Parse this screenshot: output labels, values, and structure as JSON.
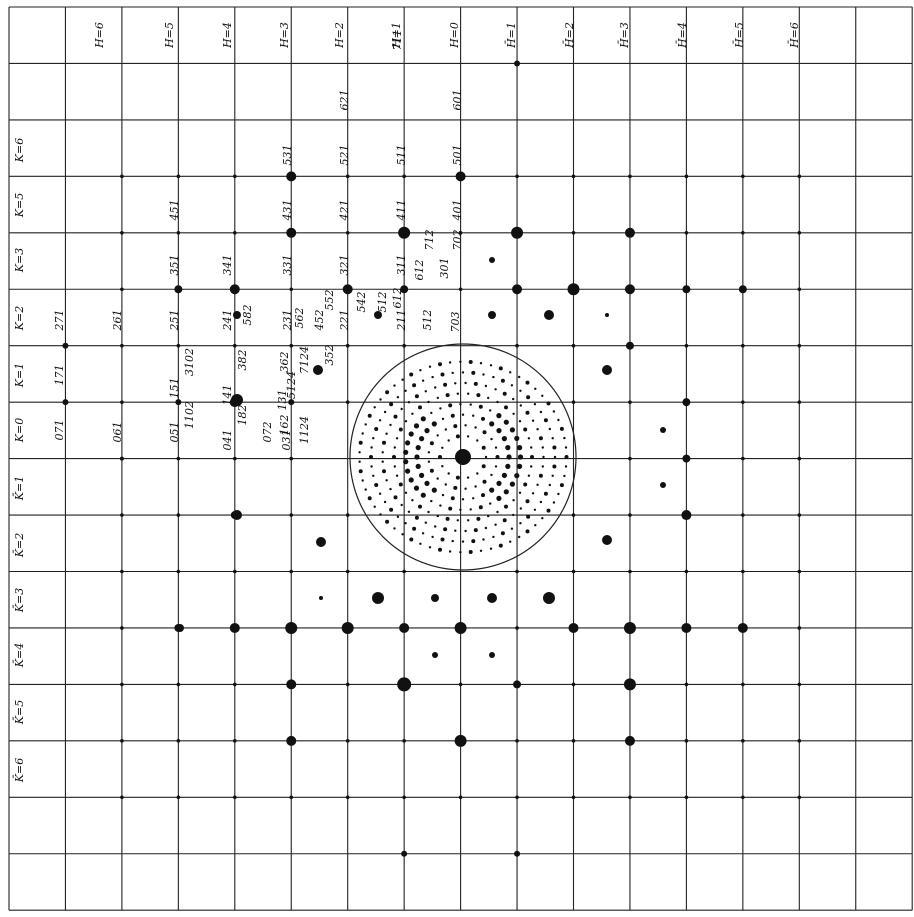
{
  "column_headers": [
    "H=6",
    "H=5",
    "H=4",
    "H=3",
    "H=2",
    "H=1",
    "H=0",
    "H̄=1",
    "H̄=2",
    "H̄=3",
    "H̄=4",
    "H̄=5",
    "H̄=6"
  ],
  "row_headers": [
    "K=6",
    "K=5",
    "K=3",
    "K=2",
    "K=1",
    "K=0",
    "K̄=1",
    "K̄=2",
    "K̄=3",
    "K̄=4",
    "K̄=5",
    "K̄=6"
  ],
  "index_labels": [
    "711",
    "621",
    "601",
    "531",
    "521",
    "511",
    "501",
    "451",
    "431",
    "421",
    "411",
    "401",
    "351",
    "341",
    "331",
    "321",
    "311",
    "612",
    "712",
    "702",
    "301",
    "542",
    "512",
    "612",
    "271",
    "261",
    "251",
    "241",
    "582",
    "231",
    "562",
    "452",
    "552",
    "221",
    "211",
    "512",
    "703",
    "171",
    "3102",
    "151",
    "382",
    "362",
    "7124",
    "5124",
    "352",
    "071",
    "061",
    "051",
    "1102",
    "141",
    "182",
    "131",
    "162",
    "072",
    "041",
    "031",
    "1124"
  ]
}
